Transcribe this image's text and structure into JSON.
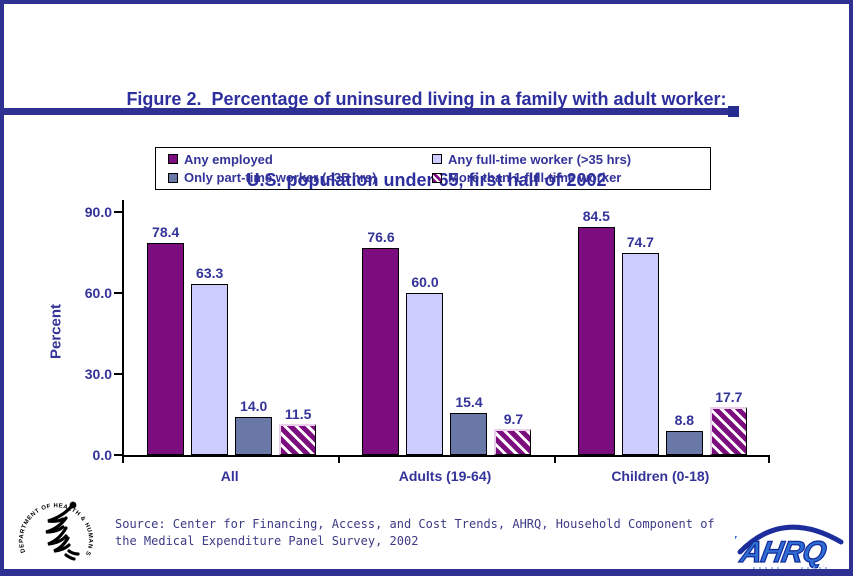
{
  "title": {
    "line1": "Figure 2.  Percentage of uninsured living in a family with adult worker:",
    "line2": "U.S. population under 65, first half of 2002"
  },
  "chart_data": {
    "type": "bar",
    "title": "Figure 2. Percentage of uninsured living in a family with adult worker: U.S. population under 65, first half of 2002",
    "categories": [
      "All",
      "Adults (19-64)",
      "Children (0-18)"
    ],
    "series": [
      {
        "name": "Any employed",
        "color": "#7B0D7E",
        "pattern": "dots",
        "values": [
          78.4,
          76.6,
          84.5
        ]
      },
      {
        "name": "Any full-time worker (>35 hrs)",
        "color": "#CCCCFF",
        "pattern": "dots",
        "values": [
          63.3,
          60.0,
          74.7
        ]
      },
      {
        "name": "Only part-time worker (<35 hrs)",
        "color": "#6A78A8",
        "pattern": "solid",
        "values": [
          14.0,
          15.4,
          8.8
        ]
      },
      {
        "name": "More than 1 full-time worker",
        "color": "#7B0D7E",
        "pattern": "hatch",
        "values": [
          11.5,
          9.7,
          17.7
        ]
      }
    ],
    "xlabel": "",
    "ylabel": "Percent",
    "ylim": [
      0,
      94.4
    ],
    "yticks": [
      0,
      30,
      60,
      90
    ],
    "ytick_labels": [
      "0.0",
      "30.0",
      "60.0",
      "90.0"
    ],
    "value_label_decimals": 1,
    "grid": false,
    "legend_position": "top",
    "accent_text_color": "#333399"
  },
  "footer": {
    "source_text": "Source: Center for Financing, Access, and Cost Trends, AHRQ, Household Component of\nthe Medical Expenditure Panel Survey, 2002",
    "ahrq_logo_text": "AHRQ",
    "hhs_seal_text": "DEPARTMENT OF HEALTH & HUMAN SERVICES · USA"
  }
}
